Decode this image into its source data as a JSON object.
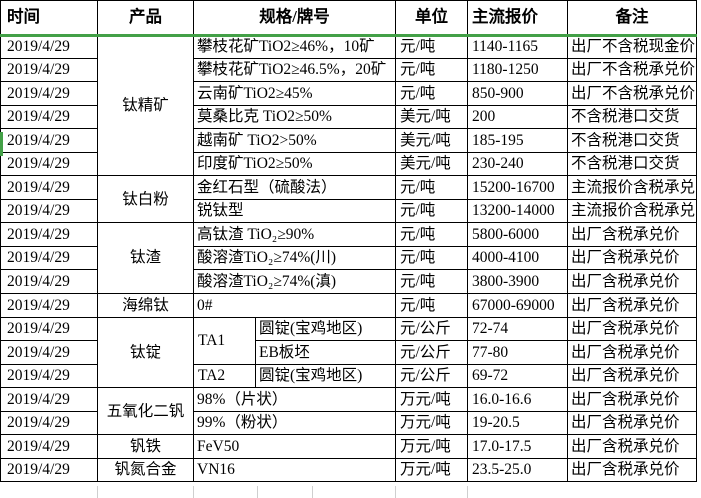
{
  "accent": {
    "freeze_line_green": "#43a047",
    "border_black": "#000000",
    "gridline_gray": "#cfcfcf"
  },
  "table": {
    "columns": [
      {
        "key": "time",
        "label": "时间"
      },
      {
        "key": "product",
        "label": "产品"
      },
      {
        "key": "spec",
        "label": "规格/牌号"
      },
      {
        "key": "unit",
        "label": "单位"
      },
      {
        "key": "price",
        "label": "主流报价"
      },
      {
        "key": "note",
        "label": "备注"
      }
    ],
    "rows": [
      {
        "date": "2019/4/29",
        "product": "钛精矿",
        "product_span": 6,
        "spec": "攀枝花矿TiO2≥46%，10矿",
        "unit": "元/吨",
        "price": "1140-1165",
        "note": "出厂不含税现金价"
      },
      {
        "date": "2019/4/29",
        "spec": "攀枝花矿TiO2≥46.5%，20矿",
        "unit": "元/吨",
        "price": "1180-1250",
        "note": "出厂不含税承兑价"
      },
      {
        "date": "2019/4/29",
        "spec": "云南矿TiO2≥45%",
        "unit": "元/吨",
        "price": "850-900",
        "note": "出厂不含税承兑价"
      },
      {
        "date": "2019/4/29",
        "spec": "莫桑比克 TiO2≥50%",
        "unit": "美元/吨",
        "price": "200",
        "note": "不含税港口交货"
      },
      {
        "date": "2019/4/29",
        "spec": "越南矿 TiO2>50%",
        "unit": "美元/吨",
        "price": "185-195",
        "note": "不含税港口交货"
      },
      {
        "date": "2019/4/29",
        "spec": "印度矿TiO2≥50%",
        "unit": "美元/吨",
        "price": "230-240",
        "note": "不含税港口交货"
      },
      {
        "date": "2019/4/29",
        "product": "钛白粉",
        "product_span": 2,
        "spec": "金红石型（硫酸法）",
        "unit": "元/吨",
        "price": "15200-16700",
        "note": "主流报价含税承兑"
      },
      {
        "date": "2019/4/29",
        "spec": "锐钛型",
        "unit": "元/吨",
        "price": "13200-14000",
        "note": "主流报价含税承兑"
      },
      {
        "date": "2019/4/29",
        "product": "钛渣",
        "product_span": 3,
        "spec": "高钛渣 TiO₂≥90%",
        "unit": "元/吨",
        "price": "5800-6000",
        "note": "出厂含税承兑价"
      },
      {
        "date": "2019/4/29",
        "spec": "酸溶渣TiO₂≥74%(川)",
        "unit": "元/吨",
        "price": "4000-4100",
        "note": "出厂含税承兑价"
      },
      {
        "date": "2019/4/29",
        "spec": "酸溶渣TiO₂≥74%(滇)",
        "unit": "元/吨",
        "price": "3800-3900",
        "note": "出厂含税承兑价"
      },
      {
        "date": "2019/4/29",
        "product": "海绵钛",
        "product_span": 1,
        "spec": "0#",
        "unit": "元/吨",
        "price": "67000-69000",
        "note": "出厂含税承兑价"
      },
      {
        "date": "2019/4/29",
        "product": "钛锭",
        "product_span": 3,
        "split": true,
        "grade": "TA1",
        "grade_span": 2,
        "spec": "圆锭(宝鸡地区)",
        "unit": "元/公斤",
        "price": "72-74",
        "note": "出厂含税承兑价"
      },
      {
        "date": "2019/4/29",
        "split": true,
        "spec": "EB板坯",
        "unit": "元/公斤",
        "price": "77-80",
        "note": "出厂含税承兑价"
      },
      {
        "date": "2019/4/29",
        "split": true,
        "grade": "TA2",
        "grade_span": 1,
        "spec": "圆锭(宝鸡地区)",
        "unit": "元/公斤",
        "price": "69-72",
        "note": "出厂含税承兑价"
      },
      {
        "date": "2019/4/29",
        "product": "五氧化二钒",
        "product_span": 2,
        "spec": "98%（片状）",
        "unit": "万元/吨",
        "price": "16.0-16.6",
        "note": "出厂含税承兑价"
      },
      {
        "date": "2019/4/29",
        "spec": "99%（粉状）",
        "unit": "万元/吨",
        "price": "19-20.5",
        "note": "出厂含税承兑价"
      },
      {
        "date": "2019/4/29",
        "product": "钒铁",
        "product_span": 1,
        "spec": "FeV50",
        "unit": "万元/吨",
        "price": "17.0-17.5",
        "note": "出厂含税承兑价"
      },
      {
        "date": "2019/4/29",
        "product": "钒氮合金",
        "product_span": 1,
        "spec": "VN16",
        "unit": "万元/吨",
        "price": "23.5-25.0",
        "note": "出厂含税承兑价"
      }
    ]
  }
}
